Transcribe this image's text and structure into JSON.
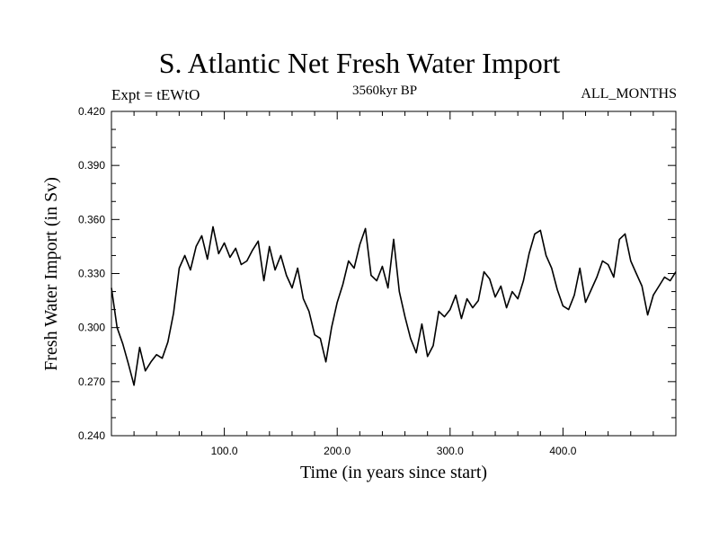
{
  "chart_data": {
    "type": "line",
    "title": "S. Atlantic Net Fresh Water Import",
    "subtitle_left": "Expt = tEWtO",
    "subtitle_center": "3560kyr BP",
    "subtitle_right": "ALL_MONTHS",
    "xlabel": "Time (in years since start)",
    "ylabel": "Fresh Water Import (in Sv)",
    "xlim": [
      0,
      500
    ],
    "ylim": [
      0.24,
      0.42
    ],
    "x_ticks": [
      100,
      200,
      300,
      400
    ],
    "x_tick_labels": [
      "100.0",
      "200.0",
      "300.0",
      "400.0"
    ],
    "y_ticks": [
      0.24,
      0.27,
      0.3,
      0.33,
      0.36,
      0.39,
      0.42
    ],
    "y_tick_labels": [
      "0.240",
      "0.270",
      "0.300",
      "0.330",
      "0.360",
      "0.390",
      "0.420"
    ],
    "grid": false,
    "series": [
      {
        "name": "fresh_water_import",
        "x": [
          0,
          5,
          10,
          15,
          20,
          25,
          30,
          35,
          40,
          45,
          50,
          55,
          60,
          65,
          70,
          75,
          80,
          85,
          90,
          95,
          100,
          105,
          110,
          115,
          120,
          125,
          130,
          135,
          140,
          145,
          150,
          155,
          160,
          165,
          170,
          175,
          180,
          185,
          190,
          195,
          200,
          205,
          210,
          215,
          220,
          225,
          230,
          235,
          240,
          245,
          250,
          255,
          260,
          265,
          270,
          275,
          280,
          285,
          290,
          295,
          300,
          305,
          310,
          315,
          320,
          325,
          330,
          335,
          340,
          345,
          350,
          355,
          360,
          365,
          370,
          375,
          380,
          385,
          390,
          395,
          400,
          405,
          410,
          415,
          420,
          425,
          430,
          435,
          440,
          445,
          450,
          455,
          460,
          465,
          470,
          475,
          480,
          485,
          490,
          495,
          500
        ],
        "values": [
          0.322,
          0.3,
          0.291,
          0.28,
          0.268,
          0.289,
          0.276,
          0.281,
          0.285,
          0.283,
          0.292,
          0.308,
          0.333,
          0.34,
          0.332,
          0.345,
          0.351,
          0.338,
          0.356,
          0.341,
          0.347,
          0.339,
          0.344,
          0.335,
          0.337,
          0.343,
          0.348,
          0.326,
          0.345,
          0.332,
          0.34,
          0.329,
          0.322,
          0.333,
          0.316,
          0.309,
          0.296,
          0.294,
          0.281,
          0.3,
          0.314,
          0.324,
          0.337,
          0.333,
          0.346,
          0.355,
          0.329,
          0.326,
          0.334,
          0.322,
          0.349,
          0.32,
          0.306,
          0.294,
          0.286,
          0.302,
          0.284,
          0.29,
          0.309,
          0.306,
          0.31,
          0.318,
          0.305,
          0.316,
          0.311,
          0.315,
          0.331,
          0.327,
          0.317,
          0.323,
          0.311,
          0.32,
          0.316,
          0.326,
          0.341,
          0.352,
          0.354,
          0.34,
          0.333,
          0.321,
          0.312,
          0.31,
          0.318,
          0.333,
          0.314,
          0.321,
          0.328,
          0.337,
          0.335,
          0.328,
          0.349,
          0.352,
          0.337,
          0.33,
          0.323,
          0.307,
          0.318,
          0.323,
          0.328,
          0.326,
          0.331
        ]
      }
    ]
  }
}
